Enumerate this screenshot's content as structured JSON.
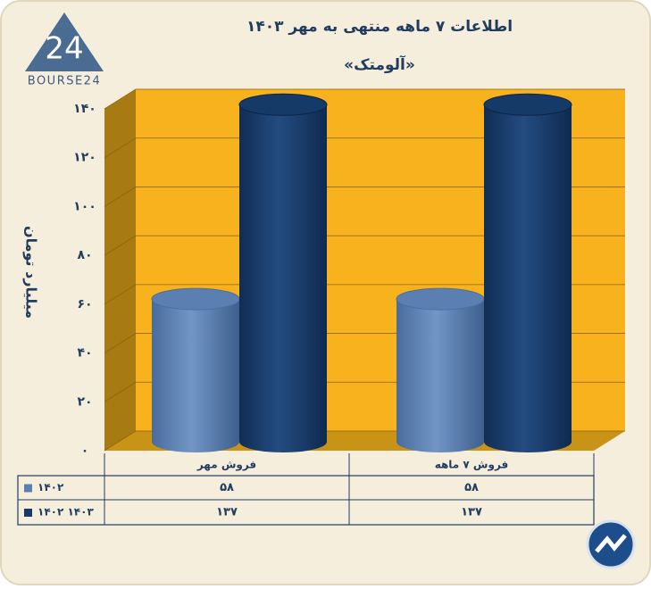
{
  "logo": {
    "mark": "24",
    "text": "BOURSE24"
  },
  "chart_data": {
    "type": "bar3d",
    "title": "اطلاعات ۷ ماهه منتهی به مهر ۱۴۰۳",
    "subtitle": "«آلومتک»",
    "y_label": "میلیارد تومان",
    "categories": [
      "فروش مهر",
      "فروش ۷  ماهه"
    ],
    "series": [
      {
        "name": "۱۴۰۲",
        "color": "#5b7fb0",
        "values": [
          58,
          58
        ],
        "value_labels": [
          "۵۸",
          "۵۸"
        ]
      },
      {
        "name": "۱۴۰۲ ۱۴۰۳",
        "color": "#163a68",
        "values": [
          137,
          137
        ],
        "value_labels": [
          "۱۳۷",
          "۱۳۷"
        ]
      }
    ],
    "ylim": [
      0,
      140
    ],
    "yticks": [
      {
        "value": 0,
        "label": "۰"
      },
      {
        "value": 20,
        "label": "۲۰"
      },
      {
        "value": 40,
        "label": "۴۰"
      },
      {
        "value": 60,
        "label": "۶۰"
      },
      {
        "value": 80,
        "label": "۸۰"
      },
      {
        "value": 100,
        "label": "۱۰۰"
      },
      {
        "value": 120,
        "label": "۱۲۰"
      },
      {
        "value": 140,
        "label": "۱۴۰"
      }
    ],
    "grid": true
  }
}
